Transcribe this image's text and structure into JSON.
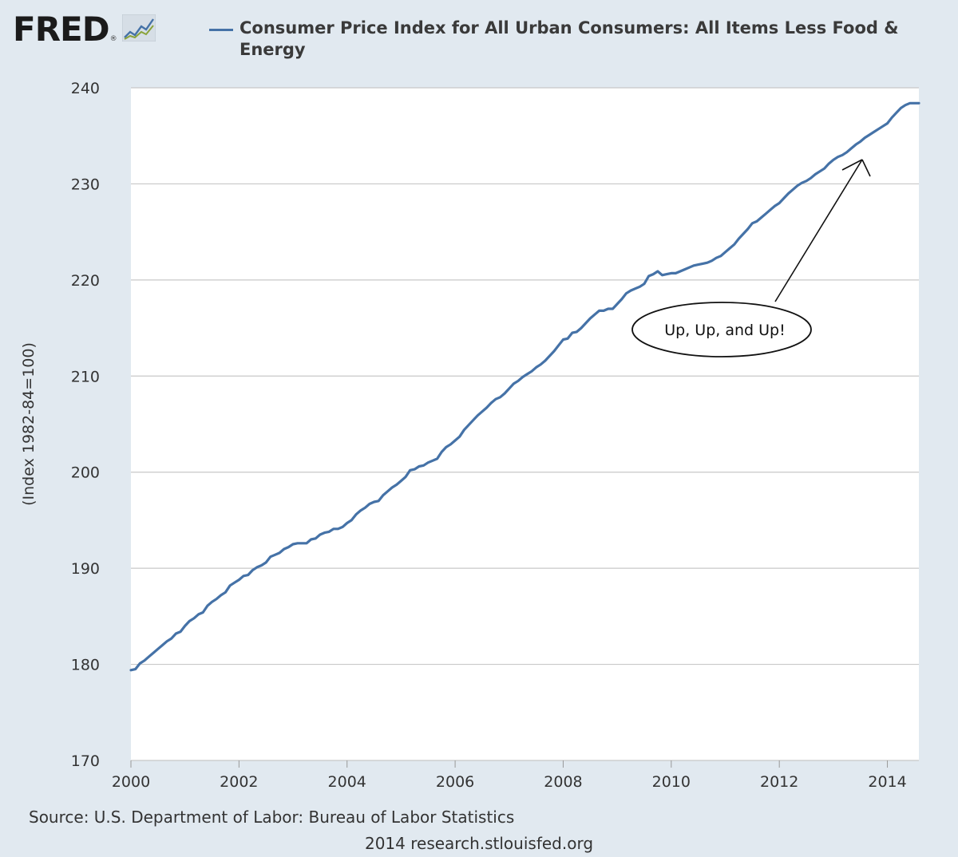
{
  "brand": {
    "logo_text": "FRED",
    "logo_mark": "®"
  },
  "chart_data": {
    "type": "line",
    "title": "Consumer Price Index for All Urban Consumers: All Items Less Food & Energy",
    "ylabel": "(Index 1982-84=100)",
    "xlabel": "",
    "xlim": [
      2000.0,
      2014.583
    ],
    "ylim": [
      170,
      240
    ],
    "x_ticks": [
      "2000",
      "2002",
      "2004",
      "2006",
      "2008",
      "2010",
      "2012",
      "2014"
    ],
    "y_ticks": [
      "170",
      "180",
      "190",
      "200",
      "210",
      "220",
      "230",
      "240"
    ],
    "grid": true,
    "legend_position": "top",
    "line_color": "#4572a7",
    "series": [
      {
        "name": "Consumer Price Index for All Urban Consumers: All Items Less Food & Energy",
        "x": [
          2000.0,
          2000.083,
          2000.167,
          2000.25,
          2000.333,
          2000.417,
          2000.5,
          2000.583,
          2000.667,
          2000.75,
          2000.833,
          2000.917,
          2001.0,
          2001.083,
          2001.167,
          2001.25,
          2001.333,
          2001.417,
          2001.5,
          2001.583,
          2001.667,
          2001.75,
          2001.833,
          2001.917,
          2002.0,
          2002.083,
          2002.167,
          2002.25,
          2002.333,
          2002.417,
          2002.5,
          2002.583,
          2002.667,
          2002.75,
          2002.833,
          2002.917,
          2003.0,
          2003.083,
          2003.167,
          2003.25,
          2003.333,
          2003.417,
          2003.5,
          2003.583,
          2003.667,
          2003.75,
          2003.833,
          2003.917,
          2004.0,
          2004.083,
          2004.167,
          2004.25,
          2004.333,
          2004.417,
          2004.5,
          2004.583,
          2004.667,
          2004.75,
          2004.833,
          2004.917,
          2005.0,
          2005.083,
          2005.167,
          2005.25,
          2005.333,
          2005.417,
          2005.5,
          2005.583,
          2005.667,
          2005.75,
          2005.833,
          2005.917,
          2006.0,
          2006.083,
          2006.167,
          2006.25,
          2006.333,
          2006.417,
          2006.5,
          2006.583,
          2006.667,
          2006.75,
          2006.833,
          2006.917,
          2007.0,
          2007.083,
          2007.167,
          2007.25,
          2007.333,
          2007.417,
          2007.5,
          2007.583,
          2007.667,
          2007.75,
          2007.833,
          2007.917,
          2008.0,
          2008.083,
          2008.167,
          2008.25,
          2008.333,
          2008.417,
          2008.5,
          2008.583,
          2008.667,
          2008.75,
          2008.833,
          2008.917,
          2009.0,
          2009.083,
          2009.167,
          2009.25,
          2009.333,
          2009.417,
          2009.5,
          2009.583,
          2009.667,
          2009.75,
          2009.833,
          2009.917,
          2010.0,
          2010.083,
          2010.167,
          2010.25,
          2010.333,
          2010.417,
          2010.5,
          2010.583,
          2010.667,
          2010.75,
          2010.833,
          2010.917,
          2011.0,
          2011.083,
          2011.167,
          2011.25,
          2011.333,
          2011.417,
          2011.5,
          2011.583,
          2011.667,
          2011.75,
          2011.833,
          2011.917,
          2012.0,
          2012.083,
          2012.167,
          2012.25,
          2012.333,
          2012.417,
          2012.5,
          2012.583,
          2012.667,
          2012.75,
          2012.833,
          2012.917,
          2013.0,
          2013.083,
          2013.167,
          2013.25,
          2013.333,
          2013.417,
          2013.5,
          2013.583,
          2013.667,
          2013.75,
          2013.833,
          2013.917,
          2014.0,
          2014.083,
          2014.167,
          2014.25,
          2014.333,
          2014.417,
          2014.5,
          2014.583
        ],
        "y": [
          179.4,
          179.5,
          180.1,
          180.4,
          180.8,
          181.2,
          181.6,
          182.0,
          182.4,
          182.7,
          183.2,
          183.4,
          184.0,
          184.5,
          184.8,
          185.2,
          185.4,
          186.1,
          186.5,
          186.8,
          187.2,
          187.5,
          188.2,
          188.5,
          188.8,
          189.2,
          189.3,
          189.8,
          190.1,
          190.3,
          190.6,
          191.2,
          191.4,
          191.6,
          192.0,
          192.2,
          192.5,
          192.6,
          192.6,
          192.6,
          193.0,
          193.1,
          193.5,
          193.7,
          193.8,
          194.1,
          194.1,
          194.3,
          194.7,
          195.0,
          195.6,
          196.0,
          196.3,
          196.7,
          196.9,
          197.0,
          197.6,
          198.0,
          198.4,
          198.7,
          199.1,
          199.5,
          200.2,
          200.3,
          200.6,
          200.7,
          201.0,
          201.2,
          201.4,
          202.1,
          202.6,
          202.9,
          203.3,
          203.7,
          204.4,
          204.9,
          205.4,
          205.9,
          206.3,
          206.7,
          207.2,
          207.6,
          207.8,
          208.2,
          208.7,
          209.2,
          209.5,
          209.9,
          210.2,
          210.5,
          210.9,
          211.2,
          211.6,
          212.1,
          212.6,
          213.2,
          213.8,
          213.9,
          214.5,
          214.6,
          215.0,
          215.5,
          216.0,
          216.4,
          216.8,
          216.8,
          217.0,
          217.0,
          217.5,
          218.0,
          218.6,
          218.9,
          219.1,
          219.3,
          219.6,
          220.4,
          220.6,
          220.9,
          220.5,
          220.6,
          220.7,
          220.7,
          220.9,
          221.1,
          221.3,
          221.5,
          221.6,
          221.7,
          221.8,
          222.0,
          222.3,
          222.5,
          222.9,
          223.3,
          223.7,
          224.3,
          224.8,
          225.3,
          225.9,
          226.1,
          226.5,
          226.9,
          227.3,
          227.7,
          228.0,
          228.5,
          229.0,
          229.4,
          229.8,
          230.1,
          230.3,
          230.6,
          231.0,
          231.3,
          231.6,
          232.1,
          232.5,
          232.8,
          233.0,
          233.3,
          233.7,
          234.1,
          234.4,
          234.8,
          235.1,
          235.4,
          235.7,
          236.0,
          236.3,
          236.9,
          237.4,
          237.9,
          238.2,
          238.4,
          238.4,
          238.4
        ]
      }
    ],
    "annotation": {
      "text": "Up, Up, and Up!"
    }
  },
  "source": "Source: U.S. Department of Labor: Bureau of Labor Statistics",
  "footer": "2014 research.stlouisfed.org"
}
